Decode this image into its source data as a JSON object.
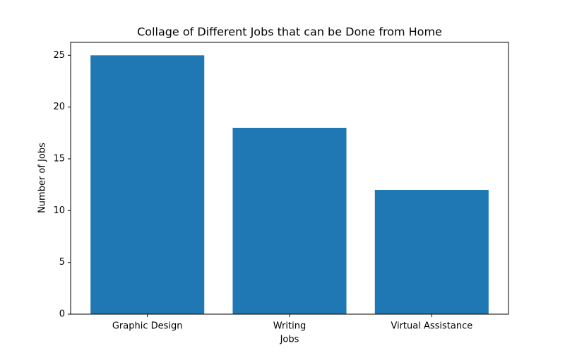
{
  "chart_data": {
    "type": "bar",
    "title": "Collage of Different Jobs that can be Done from Home",
    "x_label": "Jobs",
    "y_label": "Number of Jobs",
    "categories": [
      "Graphic Design",
      "Writing",
      "Virtual Assistance"
    ],
    "values": [
      25,
      18,
      12
    ],
    "color": "#1f77b4",
    "ylim": [
      0,
      26.25
    ],
    "yticks": [
      0,
      5,
      10,
      15,
      20,
      25
    ],
    "grid": false
  }
}
